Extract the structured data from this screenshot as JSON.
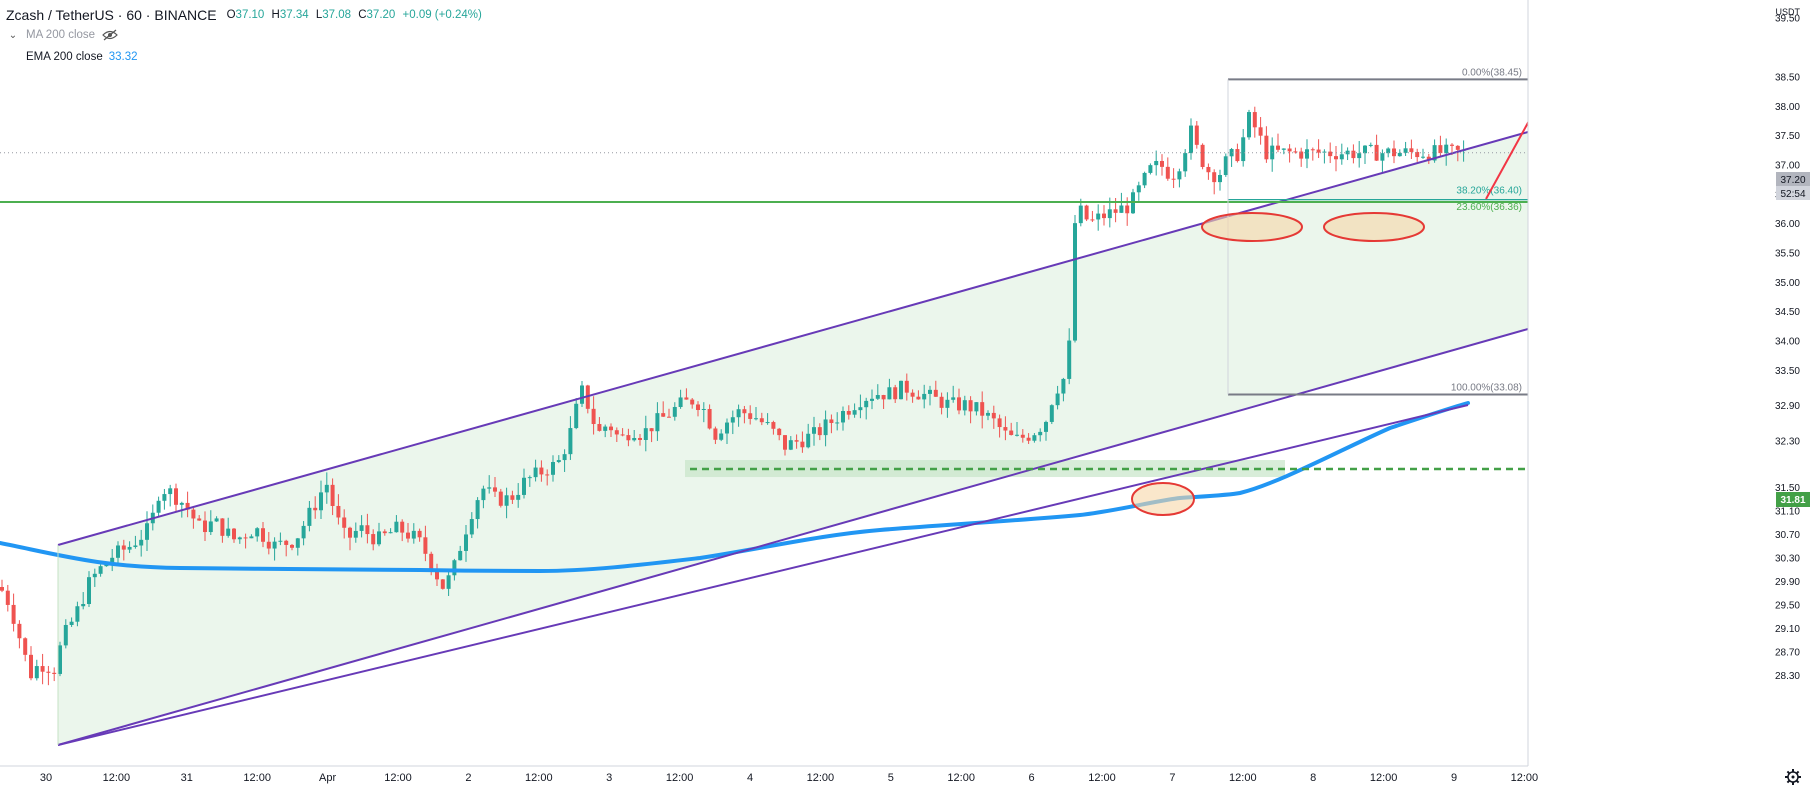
{
  "legend": {
    "symbol": "Zcash / TetherUS · 60 · BINANCE",
    "open_label": "O",
    "open": "37.10",
    "high_label": "H",
    "high": "37.34",
    "low_label": "L",
    "low": "37.08",
    "close_label": "C",
    "close": "37.20",
    "change": "+0.09 (+0.24%)",
    "ma_label": "MA 200 close",
    "ema_label": "EMA 200 close",
    "ema_value": "33.32"
  },
  "colors": {
    "background": "#ffffff",
    "up": "#26a69a",
    "down": "#ef5350",
    "ema": "#2196f3",
    "channel": "#673ab7",
    "channel_fill": "#e8f5e9",
    "horizontal": "#4caf50",
    "fib_line": "#787b86",
    "arrow": "#f23645",
    "ellipse_fill": "#f7d7a8",
    "ellipse_stroke": "#e53935"
  },
  "chart_data": {
    "type": "candlestick",
    "title": "Zcash / TetherUS · 60 · BINANCE",
    "currency": "USDT",
    "y_ticks": [
      "28.30",
      "28.70",
      "29.10",
      "29.50",
      "29.90",
      "30.30",
      "30.70",
      "31.10",
      "31.50",
      "31.81",
      "32.30",
      "32.90",
      "33.50",
      "34.00",
      "34.50",
      "35.00",
      "35.50",
      "36.00",
      "36.50",
      "37.00",
      "37.50",
      "38.00",
      "38.50",
      "39.50"
    ],
    "x_ticks": [
      "30",
      "12:00",
      "31",
      "12:00",
      "Apr",
      "12:00",
      "2",
      "12:00",
      "3",
      "12:00",
      "4",
      "12:00",
      "5",
      "12:00",
      "6",
      "12:00",
      "7",
      "12:00",
      "8",
      "12:00",
      "9",
      "12:00"
    ],
    "current_price": "37.20",
    "countdown": "52:54",
    "support_label": "31.81",
    "fib_levels": [
      {
        "label": "0.00%(38.45)",
        "value": 38.45
      },
      {
        "label": "38.20%(36.40)",
        "value": 36.4
      },
      {
        "label": "23.60%(36.36)",
        "value": 36.36
      },
      {
        "label": "100.00%(33.08)",
        "value": 33.08
      }
    ],
    "horizontal_resistance": 36.36,
    "support_level": 31.81,
    "ema_200": 33.32,
    "price_path": [
      [
        0,
        29.8
      ],
      [
        10,
        29.5
      ],
      [
        22,
        28.8
      ],
      [
        30,
        28.3
      ],
      [
        40,
        28.5
      ],
      [
        55,
        28.4
      ],
      [
        62,
        28.9
      ],
      [
        75,
        29.3
      ],
      [
        90,
        29.9
      ],
      [
        110,
        30.3
      ],
      [
        130,
        30.5
      ],
      [
        150,
        30.8
      ],
      [
        160,
        31.5
      ],
      [
        172,
        31.4
      ],
      [
        185,
        31.2
      ],
      [
        200,
        30.8
      ],
      [
        215,
        30.9
      ],
      [
        235,
        30.6
      ],
      [
        255,
        30.8
      ],
      [
        275,
        30.5
      ],
      [
        295,
        30.6
      ],
      [
        305,
        30.9
      ],
      [
        318,
        31.3
      ],
      [
        326,
        31.6
      ],
      [
        336,
        31.0
      ],
      [
        346,
        30.6
      ],
      [
        360,
        30.8
      ],
      [
        378,
        30.6
      ],
      [
        398,
        30.8
      ],
      [
        418,
        30.6
      ],
      [
        432,
        30.2
      ],
      [
        442,
        29.8
      ],
      [
        452,
        30.0
      ],
      [
        462,
        30.6
      ],
      [
        472,
        31.1
      ],
      [
        482,
        31.5
      ],
      [
        495,
        31.3
      ],
      [
        510,
        31.3
      ],
      [
        525,
        31.6
      ],
      [
        545,
        31.8
      ],
      [
        558,
        31.9
      ],
      [
        568,
        32.3
      ],
      [
        575,
        32.7
      ],
      [
        580,
        33.2
      ],
      [
        588,
        32.9
      ],
      [
        598,
        32.4
      ],
      [
        608,
        32.6
      ],
      [
        620,
        32.3
      ],
      [
        632,
        32.5
      ],
      [
        642,
        32.4
      ],
      [
        655,
        32.6
      ],
      [
        665,
        32.7
      ],
      [
        680,
        32.9
      ],
      [
        695,
        33.0
      ],
      [
        705,
        32.8
      ],
      [
        715,
        32.4
      ],
      [
        725,
        32.6
      ],
      [
        740,
        32.8
      ],
      [
        755,
        32.7
      ],
      [
        770,
        32.5
      ],
      [
        785,
        32.2
      ],
      [
        800,
        32.3
      ],
      [
        815,
        32.4
      ],
      [
        830,
        32.6
      ],
      [
        845,
        32.8
      ],
      [
        860,
        33.0
      ],
      [
        875,
        33.1
      ],
      [
        890,
        33.1
      ],
      [
        905,
        33.2
      ],
      [
        920,
        33.1
      ],
      [
        935,
        33.0
      ],
      [
        950,
        32.9
      ],
      [
        965,
        32.9
      ],
      [
        980,
        32.8
      ],
      [
        995,
        32.6
      ],
      [
        1005,
        32.4
      ],
      [
        1015,
        32.3
      ],
      [
        1030,
        32.4
      ],
      [
        1045,
        32.6
      ],
      [
        1052,
        33.0
      ],
      [
        1060,
        33.3
      ],
      [
        1068,
        33.4
      ],
      [
        1073,
        35.5
      ],
      [
        1080,
        36.2
      ],
      [
        1090,
        36.0
      ],
      [
        1100,
        36.1
      ],
      [
        1115,
        36.2
      ],
      [
        1130,
        36.3
      ],
      [
        1140,
        36.6
      ],
      [
        1150,
        36.9
      ],
      [
        1160,
        37.0
      ],
      [
        1172,
        36.8
      ],
      [
        1182,
        37.1
      ],
      [
        1190,
        37.6
      ],
      [
        1198,
        37.2
      ],
      [
        1208,
        36.9
      ],
      [
        1218,
        36.8
      ],
      [
        1228,
        37.1
      ],
      [
        1240,
        37.2
      ],
      [
        1248,
        37.8
      ],
      [
        1256,
        37.6
      ],
      [
        1266,
        37.2
      ]
    ]
  }
}
